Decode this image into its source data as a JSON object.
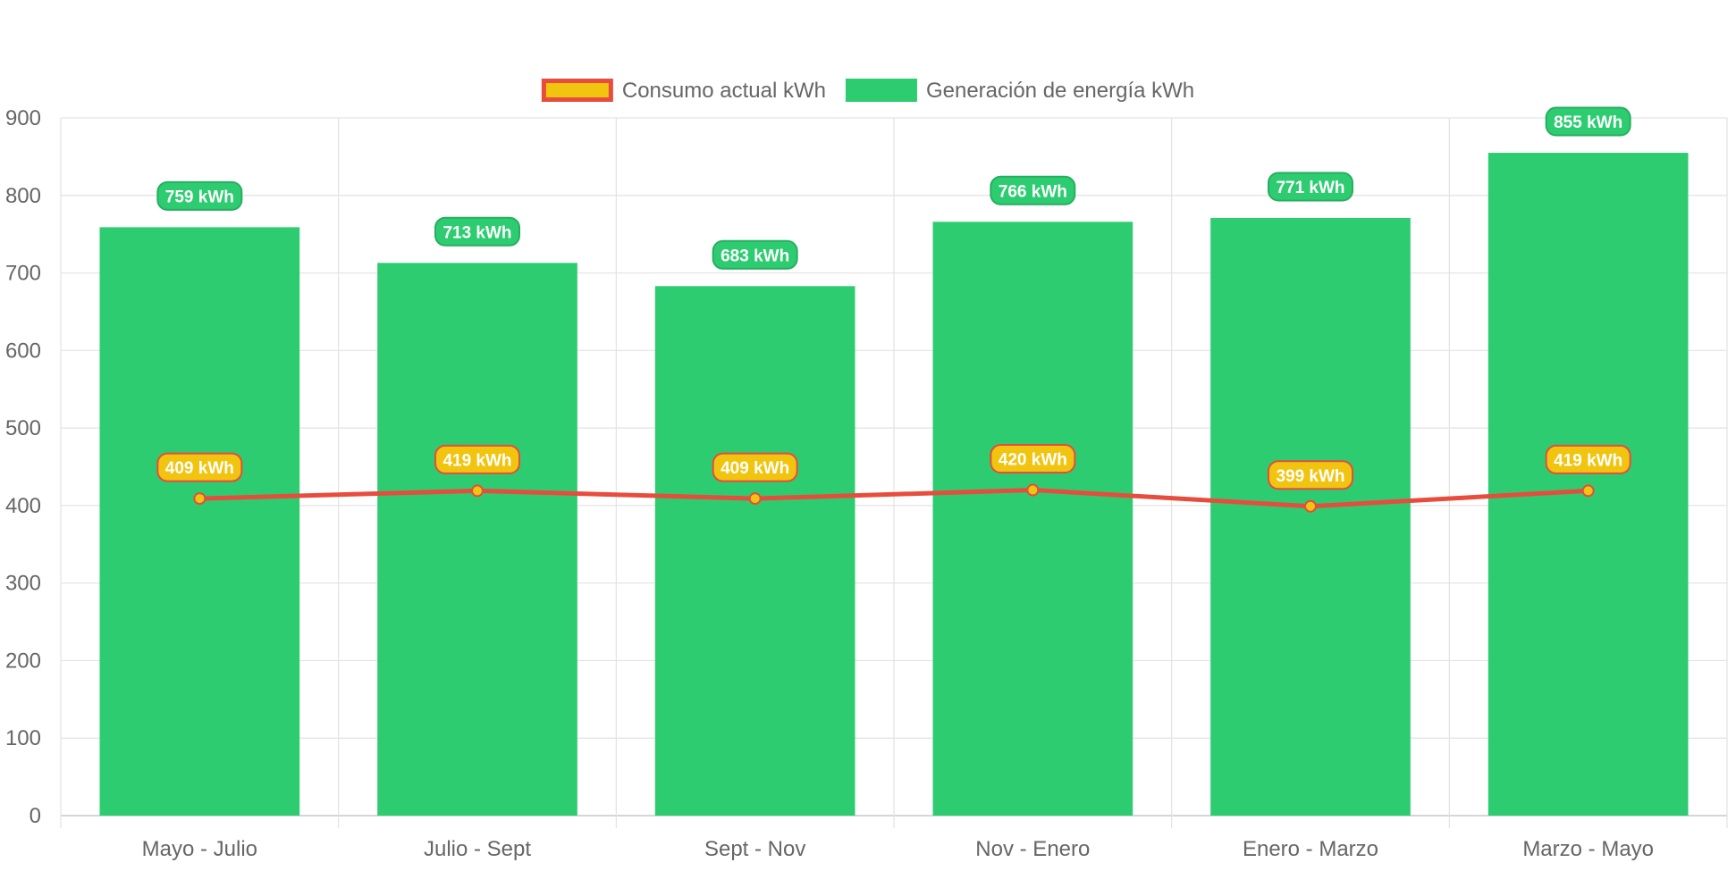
{
  "chart_data": {
    "type": "bar",
    "categories": [
      "Mayo - Julio",
      "Julio - Sept",
      "Sept - Nov",
      "Nov - Enero",
      "Enero - Marzo",
      "Marzo - Mayo"
    ],
    "series": [
      {
        "name": "Generación de energía kWh",
        "type": "bar",
        "values": [
          759,
          713,
          683,
          766,
          771,
          855
        ],
        "labels": [
          "759 kWh",
          "713 kWh",
          "683 kWh",
          "766 kWh",
          "771 kWh",
          "855 kWh"
        ],
        "color": "#2ecc71",
        "label_border": "#27ae60"
      },
      {
        "name": "Consumo actual kWh",
        "type": "line",
        "values": [
          409,
          419,
          409,
          420,
          399,
          419
        ],
        "labels": [
          "409 kWh",
          "419 kWh",
          "409 kWh",
          "420 kWh",
          "399 kWh",
          "419 kWh"
        ],
        "color": "#e74c3c",
        "fill": "#f1c40f"
      }
    ],
    "legend_order": [
      "Consumo actual kWh",
      "Generación de energía kWh"
    ],
    "ylim": [
      0,
      900
    ],
    "yticks": [
      "0",
      "100",
      "200",
      "300",
      "400",
      "500",
      "600",
      "700",
      "800",
      "900"
    ],
    "grid": true,
    "legend_position": "top",
    "title": "",
    "xlabel": "",
    "ylabel": ""
  }
}
